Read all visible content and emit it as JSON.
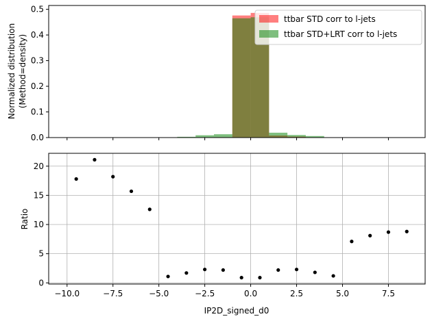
{
  "chart_data": [
    {
      "type": "bar",
      "ylabel": "Normalized distribution\n(Method=density)",
      "ylim": [
        0,
        0.515
      ],
      "yticks": [
        0.0,
        0.1,
        0.2,
        0.3,
        0.4,
        0.5
      ],
      "ytick_labels": [
        "0.0",
        "0.1",
        "0.2",
        "0.3",
        "0.4",
        "0.5"
      ],
      "xlim": [
        -11.0,
        9.5
      ],
      "grid": false,
      "legend_position": "top-right",
      "series": [
        {
          "name": "ttbar STD corr to l-jets",
          "color": "#ff0000",
          "alpha": 0.5,
          "bin_edges": [
            -10,
            -9,
            -8,
            -7,
            -6,
            -5,
            -4,
            -3,
            -2,
            -1,
            0,
            1,
            2,
            3,
            4,
            5
          ],
          "values": [
            0,
            0,
            0,
            0,
            0,
            0,
            0.0005,
            0.0012,
            0.0015,
            0.476,
            0.486,
            0.008,
            0.004,
            0.001,
            0.0003
          ]
        },
        {
          "name": "ttbar STD+LRT corr to l-jets",
          "color": "#008000",
          "alpha": 0.5,
          "bin_edges": [
            -10,
            -9,
            -8,
            -7,
            -6,
            -5,
            -4,
            -3,
            -2,
            -1,
            0,
            1,
            2,
            3,
            4,
            5
          ],
          "values": [
            0,
            0,
            0,
            0,
            0,
            0,
            0.003,
            0.009,
            0.013,
            0.465,
            0.469,
            0.019,
            0.01,
            0.006,
            0.001
          ]
        }
      ]
    },
    {
      "type": "scatter",
      "ylabel": "Ratio",
      "xlabel": "IP2D_signed_d0",
      "ylim": [
        -0.2,
        22.2
      ],
      "yticks": [
        0,
        5,
        10,
        15,
        20
      ],
      "ytick_labels": [
        "0",
        "5",
        "10",
        "15",
        "20"
      ],
      "xlim": [
        -11.0,
        9.5
      ],
      "xticks": [
        -10.0,
        -7.5,
        -5.0,
        -2.5,
        0.0,
        2.5,
        5.0,
        7.5
      ],
      "xtick_labels": [
        "−10.0",
        "−7.5",
        "−5.0",
        "−2.5",
        "0.0",
        "2.5",
        "5.0",
        "7.5"
      ],
      "grid": true,
      "color": "#000000",
      "x": [
        -9.5,
        -8.5,
        -7.5,
        -6.5,
        -5.5,
        -4.5,
        -3.5,
        -2.5,
        -1.5,
        -0.5,
        0.5,
        1.5,
        2.5,
        3.5,
        4.5,
        5.5,
        6.5,
        7.5,
        8.5
      ],
      "y": [
        17.8,
        21.1,
        18.2,
        15.7,
        12.6,
        1.1,
        1.7,
        2.3,
        2.2,
        0.9,
        0.9,
        2.2,
        2.3,
        1.8,
        1.2,
        7.1,
        8.1,
        8.7,
        8.8
      ]
    }
  ]
}
